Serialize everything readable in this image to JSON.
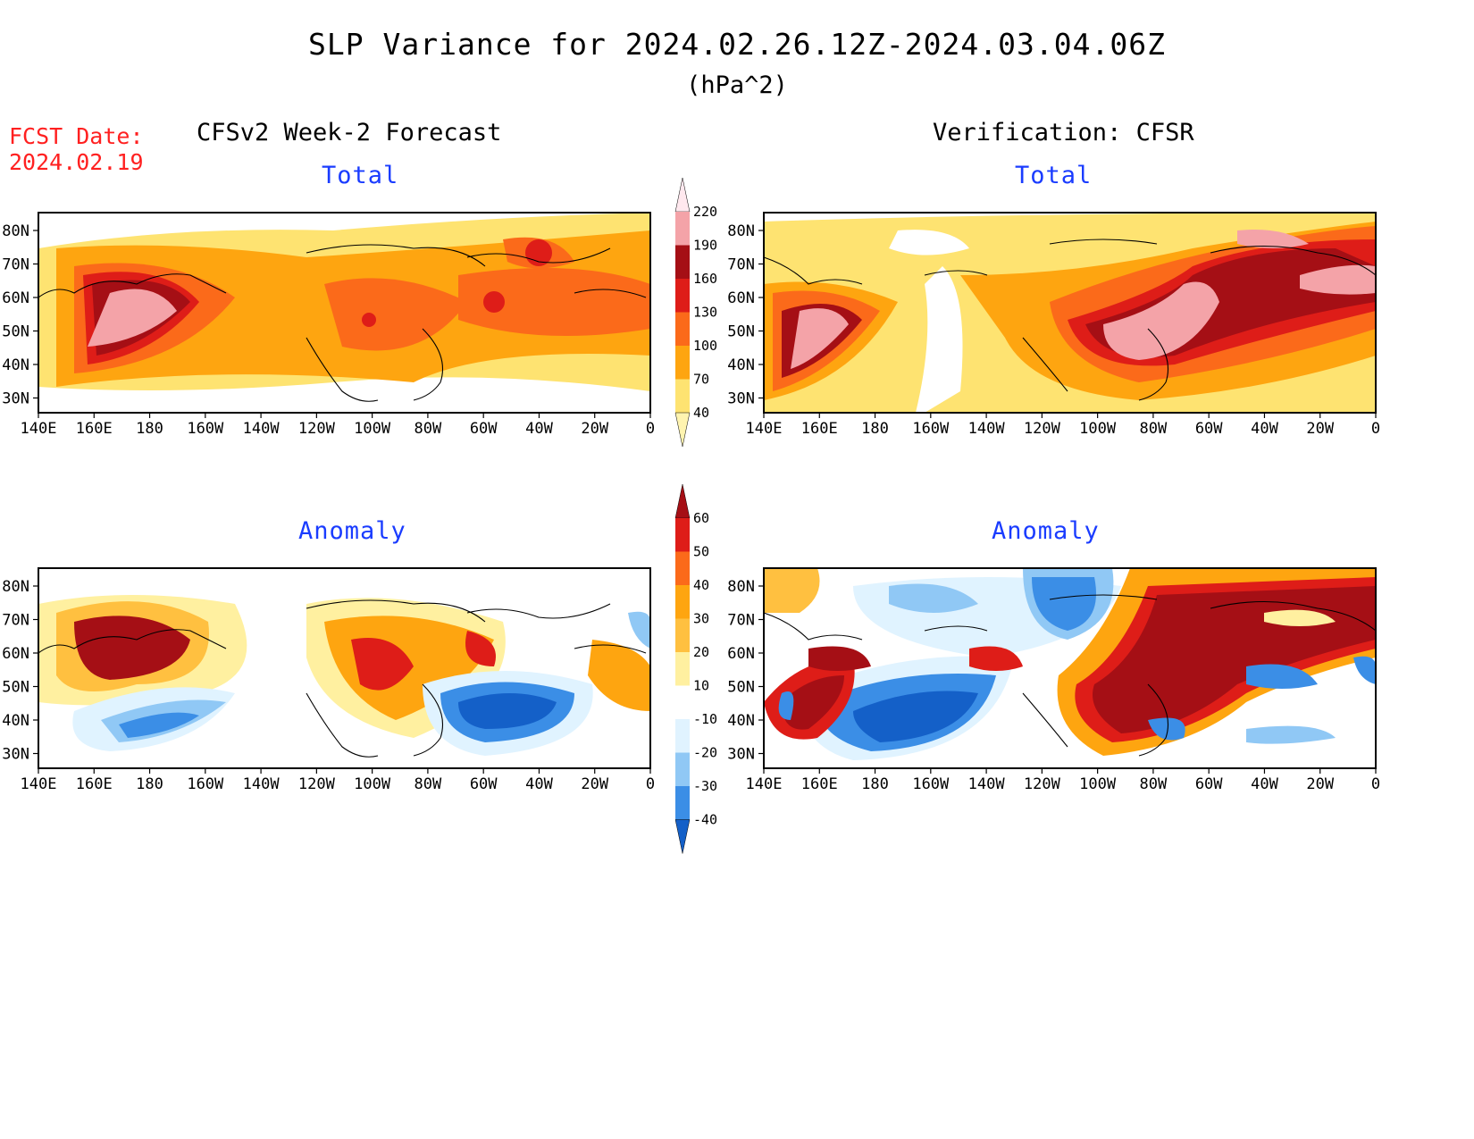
{
  "header": {
    "title": "SLP Variance for 2024.02.26.12Z-2024.03.04.06Z",
    "units": "(hPa^2)",
    "fcst_label": "FCST Date:",
    "fcst_date": "2024.02.19"
  },
  "columns": {
    "left": "CFSv2 Week-2 Forecast",
    "right": "Verification: CFSR"
  },
  "panels": {
    "forecast_total": "Total",
    "verification_total": "Total",
    "forecast_anomaly": "Anomaly",
    "verification_anomaly": "Anomaly"
  },
  "axes": {
    "lat_labels": [
      "80N",
      "70N",
      "60N",
      "50N",
      "40N",
      "30N"
    ],
    "lon_labels": [
      "140E",
      "160E",
      "180",
      "160W",
      "140W",
      "120W",
      "100W",
      "80W",
      "60W",
      "40W",
      "20W",
      "0"
    ]
  },
  "colorbars": {
    "total": {
      "labels": [
        "220",
        "190",
        "160",
        "130",
        "100",
        "70",
        "40"
      ],
      "colors": [
        "#ffe8ee",
        "#f4a3a8",
        "#a50f15",
        "#de1d18",
        "#fb6a1a",
        "#fea510",
        "#fee371",
        "#fff4b0"
      ]
    },
    "anomaly": {
      "labels": [
        "60",
        "50",
        "40",
        "30",
        "20",
        "10",
        "-10",
        "-20",
        "-30",
        "-40"
      ],
      "colors": [
        "#a50f15",
        "#de1d18",
        "#fb6a1a",
        "#fea510",
        "#ffc040",
        "#fff0a0",
        "#ffffff",
        "#e0f3ff",
        "#90c8f5",
        "#3b8ee6",
        "#1460c8"
      ]
    }
  }
}
